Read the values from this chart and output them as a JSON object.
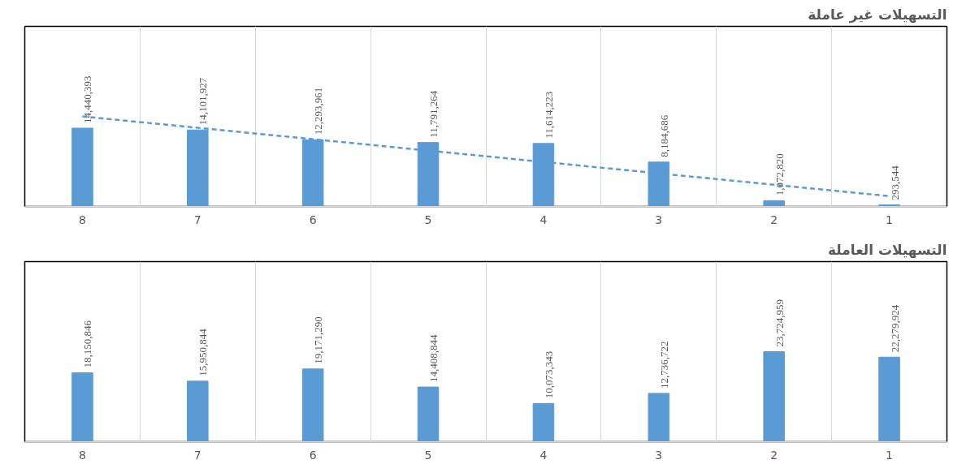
{
  "chart_data": [
    {
      "type": "bar",
      "title": "التسهيلات غير عاملة",
      "categories": [
        "8",
        "7",
        "6",
        "5",
        "4",
        "3",
        "2",
        "1"
      ],
      "series": [
        {
          "color": "#5b9bd5",
          "values": [
            14440393,
            14101927,
            12293961,
            11791264,
            11614223,
            8184686,
            1072820,
            293544
          ],
          "value_labels": [
            "14,440,393",
            "14,101,927",
            "12,293,961",
            "11,791,264",
            "11,614,223",
            "8,184,686",
            "1,072,820",
            "293,544"
          ]
        },
        {
          "type": "line",
          "color": "#5b9bd5",
          "line_style": "dashed",
          "x": [
            "8",
            "1"
          ],
          "values": [
            16600000,
            1900000
          ]
        }
      ],
      "grid": "x",
      "tick_labels": "x"
    },
    {
      "type": "bar",
      "title": "التسهيلات العاملة",
      "categories": [
        "8",
        "7",
        "6",
        "5",
        "4",
        "3",
        "2",
        "1"
      ],
      "series": [
        {
          "color": "#5b9bd5",
          "values": [
            18150846,
            15950844,
            19171290,
            14408844,
            10073343,
            12736722,
            23724959,
            22279924
          ],
          "value_labels": [
            "18,150,846",
            "15,950,844",
            "19,171,290",
            "14,408,844",
            "10,073,343",
            "12,736,722",
            "23,724,959",
            "22,279,924"
          ]
        }
      ],
      "grid": "x",
      "tick_labels": "x"
    }
  ]
}
